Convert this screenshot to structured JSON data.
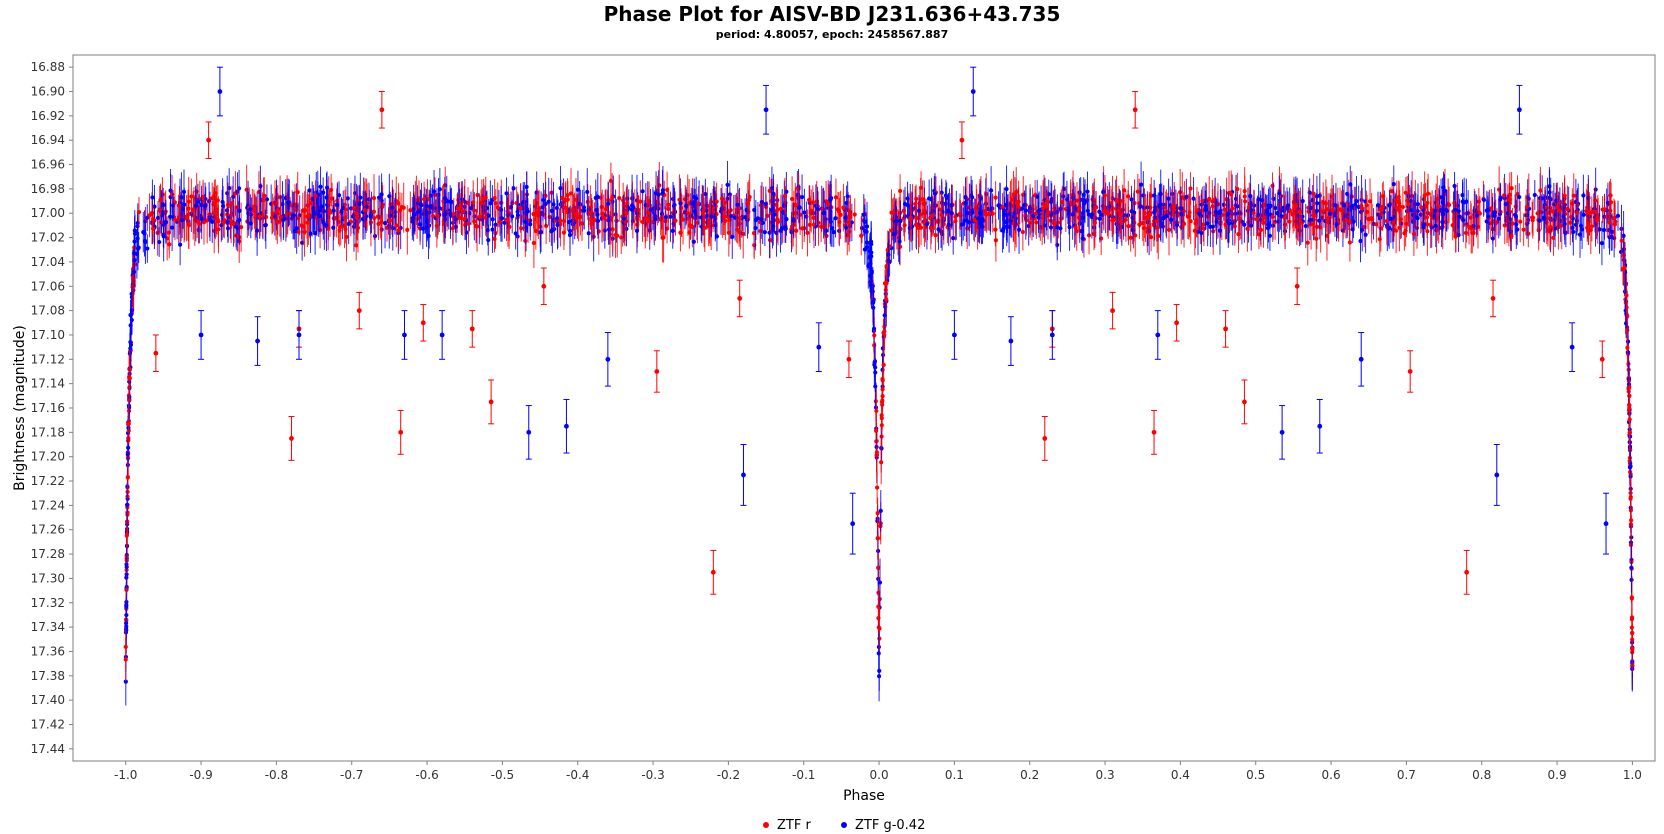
{
  "chart_data": {
    "type": "scatter",
    "title": "Phase Plot for AISV-BD J231.636+43.735",
    "subtitle": "period: 4.80057, epoch: 2458567.887",
    "xlabel": "Phase",
    "ylabel": "Brightness (magnitude)",
    "xlim": [
      -1.07,
      1.03
    ],
    "ylim": [
      17.45,
      16.87
    ],
    "y_inverted": true,
    "grid": false,
    "legend_position": "bottom-center",
    "x_ticks": [
      -1.0,
      -0.9,
      -0.8,
      -0.7,
      -0.6,
      -0.5,
      -0.4,
      -0.3,
      -0.2,
      -0.1,
      0.0,
      0.1,
      0.2,
      0.3,
      0.4,
      0.5,
      0.6,
      0.7,
      0.8,
      0.9,
      1.0
    ],
    "x_tick_labels": [
      "-1.0",
      "-0.9",
      "-0.8",
      "-0.7",
      "-0.6",
      "-0.5",
      "-0.4",
      "-0.3",
      "-0.2",
      "-0.1",
      "0.0",
      "0.1",
      "0.2",
      "0.3",
      "0.4",
      "0.5",
      "0.6",
      "0.7",
      "0.8",
      "0.9",
      "1.0"
    ],
    "y_ticks": [
      16.88,
      16.9,
      16.92,
      16.94,
      16.96,
      16.98,
      17.0,
      17.02,
      17.04,
      17.06,
      17.08,
      17.1,
      17.12,
      17.14,
      17.16,
      17.18,
      17.2,
      17.22,
      17.24,
      17.26,
      17.28,
      17.3,
      17.32,
      17.34,
      17.36,
      17.38,
      17.4,
      17.42,
      17.44
    ],
    "y_tick_labels": [
      "16.88",
      "16.90",
      "16.92",
      "16.94",
      "16.96",
      "16.98",
      "17.00",
      "17.02",
      "17.04",
      "17.06",
      "17.08",
      "17.10",
      "17.12",
      "17.14",
      "17.16",
      "17.18",
      "17.20",
      "17.22",
      "17.24",
      "17.26",
      "17.28",
      "17.30",
      "17.32",
      "17.34",
      "17.36",
      "17.38",
      "17.40",
      "17.42",
      "17.44"
    ],
    "series": [
      {
        "name": "ZTF r",
        "color": "#ff0000",
        "points": [
          {
            "x": -0.78,
            "y": 17.185,
            "err": 0.018
          },
          {
            "x": -0.635,
            "y": 17.18,
            "err": 0.018
          },
          {
            "x": -0.515,
            "y": 17.155,
            "err": 0.018
          },
          {
            "x": -0.295,
            "y": 17.13,
            "err": 0.017
          },
          {
            "x": -0.22,
            "y": 17.295,
            "err": 0.018
          },
          {
            "x": -0.96,
            "y": 17.115,
            "err": 0.015
          },
          {
            "x": -0.77,
            "y": 17.095,
            "err": 0.015
          },
          {
            "x": -0.69,
            "y": 17.08,
            "err": 0.015
          },
          {
            "x": -0.605,
            "y": 17.09,
            "err": 0.015
          },
          {
            "x": -0.54,
            "y": 17.095,
            "err": 0.015
          },
          {
            "x": -0.445,
            "y": 17.06,
            "err": 0.015
          },
          {
            "x": -0.185,
            "y": 17.07,
            "err": 0.015
          },
          {
            "x": -0.04,
            "y": 17.12,
            "err": 0.015
          },
          {
            "x": -0.89,
            "y": 16.94,
            "err": 0.015
          },
          {
            "x": -0.66,
            "y": 16.915,
            "err": 0.015
          },
          {
            "x": 0.22,
            "y": 17.185,
            "err": 0.018
          },
          {
            "x": 0.365,
            "y": 17.18,
            "err": 0.018
          },
          {
            "x": 0.485,
            "y": 17.155,
            "err": 0.018
          },
          {
            "x": 0.705,
            "y": 17.13,
            "err": 0.017
          },
          {
            "x": 0.78,
            "y": 17.295,
            "err": 0.018
          },
          {
            "x": 0.23,
            "y": 17.095,
            "err": 0.015
          },
          {
            "x": 0.31,
            "y": 17.08,
            "err": 0.015
          },
          {
            "x": 0.395,
            "y": 17.09,
            "err": 0.015
          },
          {
            "x": 0.46,
            "y": 17.095,
            "err": 0.015
          },
          {
            "x": 0.555,
            "y": 17.06,
            "err": 0.015
          },
          {
            "x": 0.815,
            "y": 17.07,
            "err": 0.015
          },
          {
            "x": 0.96,
            "y": 17.12,
            "err": 0.015
          },
          {
            "x": 0.11,
            "y": 16.94,
            "err": 0.015
          },
          {
            "x": 0.34,
            "y": 16.915,
            "err": 0.015
          }
        ]
      },
      {
        "name": "ZTF g-0.42",
        "color": "#0000ff",
        "points": [
          {
            "x": -0.465,
            "y": 17.18,
            "err": 0.022
          },
          {
            "x": -0.415,
            "y": 17.175,
            "err": 0.022
          },
          {
            "x": -0.36,
            "y": 17.12,
            "err": 0.022
          },
          {
            "x": -0.18,
            "y": 17.215,
            "err": 0.025
          },
          {
            "x": -0.08,
            "y": 17.11,
            "err": 0.02
          },
          {
            "x": -0.035,
            "y": 17.255,
            "err": 0.025
          },
          {
            "x": -0.9,
            "y": 17.1,
            "err": 0.02
          },
          {
            "x": -0.825,
            "y": 17.105,
            "err": 0.02
          },
          {
            "x": -0.77,
            "y": 17.1,
            "err": 0.02
          },
          {
            "x": -0.63,
            "y": 17.1,
            "err": 0.02
          },
          {
            "x": -0.58,
            "y": 17.1,
            "err": 0.02
          },
          {
            "x": -0.875,
            "y": 16.9,
            "err": 0.02
          },
          {
            "x": -0.15,
            "y": 16.915,
            "err": 0.02
          },
          {
            "x": 0.535,
            "y": 17.18,
            "err": 0.022
          },
          {
            "x": 0.585,
            "y": 17.175,
            "err": 0.022
          },
          {
            "x": 0.64,
            "y": 17.12,
            "err": 0.022
          },
          {
            "x": 0.82,
            "y": 17.215,
            "err": 0.025
          },
          {
            "x": 0.92,
            "y": 17.11,
            "err": 0.02
          },
          {
            "x": 0.965,
            "y": 17.255,
            "err": 0.025
          },
          {
            "x": 0.1,
            "y": 17.1,
            "err": 0.02
          },
          {
            "x": 0.175,
            "y": 17.105,
            "err": 0.02
          },
          {
            "x": 0.23,
            "y": 17.1,
            "err": 0.02
          },
          {
            "x": 0.37,
            "y": 17.1,
            "err": 0.02
          },
          {
            "x": 0.125,
            "y": 16.9,
            "err": 0.02
          },
          {
            "x": 0.85,
            "y": 16.915,
            "err": 0.02
          }
        ]
      }
    ]
  }
}
